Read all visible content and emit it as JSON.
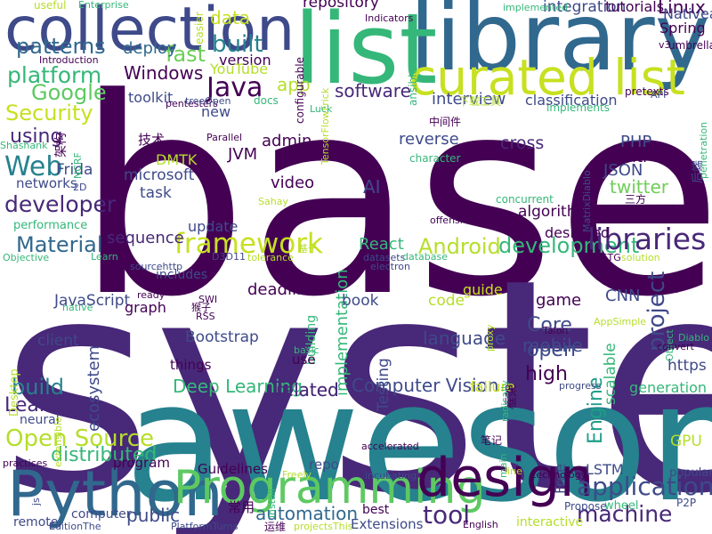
{
  "word_cloud": {
    "words": [
      {
        "text": "based",
        "color": "#440154"
      },
      {
        "text": "system",
        "color": "#482878"
      },
      {
        "text": "awesome",
        "color": "#26828e"
      },
      {
        "text": "library",
        "color": "#31688e"
      },
      {
        "text": "list",
        "color": "#35b779"
      },
      {
        "text": "collection",
        "color": "#3e4a89"
      },
      {
        "text": "curated list",
        "color": "#c7e020"
      },
      {
        "text": "Python",
        "color": "#31688e"
      },
      {
        "text": "Programming",
        "color": "#5ec962"
      },
      {
        "text": "design",
        "color": "#440154"
      },
      {
        "text": "project",
        "color": "#3e4a89"
      },
      {
        "text": "framework",
        "color": "#c7e020"
      },
      {
        "text": "Android",
        "color": "#b5de2b"
      },
      {
        "text": "development",
        "color": "#35b779"
      },
      {
        "text": "libraries",
        "color": "#482878"
      },
      {
        "text": "Open Source",
        "color": "#b5de2b"
      },
      {
        "text": "application",
        "color": "#3e4a89"
      },
      {
        "text": "machine",
        "color": "#482878"
      },
      {
        "text": "tool",
        "color": "#482878"
      },
      {
        "text": "Java",
        "color": "#440154"
      },
      {
        "text": "Web",
        "color": "#26828e"
      },
      {
        "text": "developer",
        "color": "#482878"
      },
      {
        "text": "platform",
        "color": "#35b779"
      },
      {
        "text": "Google",
        "color": "#5ec962"
      },
      {
        "text": "Security",
        "color": "#c7e020"
      },
      {
        "text": "patterns",
        "color": "#31688e"
      },
      {
        "text": "built",
        "color": "#26828e"
      },
      {
        "text": "fast",
        "color": "#6ece58"
      },
      {
        "text": "app",
        "color": "#b5de2b"
      },
      {
        "text": "Material",
        "color": "#31688e"
      },
      {
        "text": "distributed",
        "color": "#35b779"
      },
      {
        "text": "build",
        "color": "#26828e"
      },
      {
        "text": "Learning",
        "color": "#482878"
      },
      {
        "text": "high",
        "color": "#440154"
      },
      {
        "text": "mobile",
        "color": "#3e4a89"
      },
      {
        "text": "Core",
        "color": "#3e4a89"
      },
      {
        "text": "open",
        "color": "#3e4a89"
      },
      {
        "text": "Engine",
        "color": "#1f9e89"
      },
      {
        "text": "using",
        "color": "#482878"
      },
      {
        "text": "software",
        "color": "#482878"
      },
      {
        "text": "Linux",
        "color": "#440154"
      },
      {
        "text": "Spring",
        "color": "#440154"
      },
      {
        "text": "Nativea",
        "color": "#3e4a89"
      },
      {
        "text": "AI",
        "color": "#3e4a89"
      },
      {
        "text": "twitter",
        "color": "#6ece58"
      },
      {
        "text": "Windows",
        "color": "#440154"
      },
      {
        "text": "data",
        "color": "#c7e020"
      },
      {
        "text": "deploy",
        "color": "#31688e"
      },
      {
        "text": "related",
        "color": "#482878"
      },
      {
        "text": "automation",
        "color": "#31688e"
      },
      {
        "text": "public",
        "color": "#3e4a89"
      },
      {
        "text": "language",
        "color": "#3e4a89"
      },
      {
        "text": "Deep Learning",
        "color": "#35b779"
      },
      {
        "text": "Computer Vision",
        "color": "#3e4a89"
      },
      {
        "text": "repository",
        "color": "#440154"
      },
      {
        "text": "integration",
        "color": "#3e4a89"
      },
      {
        "text": "tutorials",
        "color": "#440154"
      },
      {
        "text": "React",
        "color": "#35b779"
      },
      {
        "text": "sequence",
        "color": "#482878"
      },
      {
        "text": "update",
        "color": "#3e4a89"
      },
      {
        "text": "algorithms",
        "color": "#440154"
      },
      {
        "text": "reverse",
        "color": "#3e4a89"
      },
      {
        "text": "cross",
        "color": "#482878"
      },
      {
        "text": "multi",
        "color": "#440154"
      },
      {
        "text": "JSON",
        "color": "#3e4a89"
      },
      {
        "text": "PHP",
        "color": "#3e4a89"
      },
      {
        "text": "interview",
        "color": "#3e4a89"
      },
      {
        "text": "classification",
        "color": "#3e4a89"
      },
      {
        "text": "implementation",
        "color": "#35b779"
      },
      {
        "text": "video",
        "color": "#440154"
      },
      {
        "text": "admin",
        "color": "#440154"
      },
      {
        "text": "JVM",
        "color": "#440154"
      },
      {
        "text": "DMTK",
        "color": "#b5de2b"
      },
      {
        "text": "microsoft",
        "color": "#3e4a89"
      },
      {
        "text": "task",
        "color": "#3e4a89"
      },
      {
        "text": "toolkit",
        "color": "#3e4a89"
      },
      {
        "text": "new",
        "color": "#3e4a89"
      },
      {
        "text": "version",
        "color": "#440154"
      },
      {
        "text": "YouTube",
        "color": "#b5de2b"
      },
      {
        "text": "game",
        "color": "#440154"
      },
      {
        "text": "CNN",
        "color": "#3e4a89"
      },
      {
        "text": "LSTM",
        "color": "#3e4a89"
      },
      {
        "text": "Free",
        "color": "#3e4a89"
      },
      {
        "text": "GPU",
        "color": "#b5de2b"
      },
      {
        "text": "generation",
        "color": "#35b779"
      },
      {
        "text": "https",
        "color": "#3e4a89"
      },
      {
        "text": "scalable",
        "color": "#35b779"
      },
      {
        "text": "guide",
        "color": "#c7e020"
      },
      {
        "text": "code",
        "color": "#b5de2b"
      },
      {
        "text": "book",
        "color": "#3e4a89"
      },
      {
        "text": "deadline",
        "color": "#440154"
      },
      {
        "text": "Testing",
        "color": "#3e4a89"
      },
      {
        "text": "JavaScript",
        "color": "#3e4a89"
      },
      {
        "text": "ecosystem",
        "color": "#3e4a89"
      },
      {
        "text": "client",
        "color": "#3e4a89"
      },
      {
        "text": "neural",
        "color": "#3e4a89"
      },
      {
        "text": "Bootstrap",
        "color": "#3e4a89"
      },
      {
        "text": "things",
        "color": "#440154"
      },
      {
        "text": "graph",
        "color": "#440154"
      },
      {
        "text": "includes",
        "color": "#3e4a89"
      },
      {
        "text": "related",
        "color": "#482878"
      },
      {
        "text": "building",
        "color": "#35b779"
      },
      {
        "text": "use",
        "color": "#440154"
      },
      {
        "text": "failure",
        "color": "#c7e020"
      },
      {
        "text": "designed",
        "color": "#440154"
      },
      {
        "text": "Frida",
        "color": "#3e4a89"
      },
      {
        "text": "networks",
        "color": "#3e4a89"
      },
      {
        "text": "performance",
        "color": "#35b779"
      },
      {
        "text": "program",
        "color": "#440154"
      },
      {
        "text": "Guidelines",
        "color": "#440154"
      },
      {
        "text": "repo",
        "color": "#3e4a89"
      },
      {
        "text": "computer",
        "color": "#3e4a89"
      },
      {
        "text": "remote",
        "color": "#3e4a89"
      },
      {
        "text": "best",
        "color": "#440154"
      },
      {
        "text": "Extensions",
        "color": "#3e4a89"
      },
      {
        "text": "interactive",
        "color": "#b5de2b"
      },
      {
        "text": "popular",
        "color": "#3e4a89"
      },
      {
        "text": "P2P",
        "color": "#3e4a89"
      },
      {
        "text": "wheel",
        "color": "#35b779"
      },
      {
        "text": "Propose",
        "color": "#3e4a89"
      },
      {
        "text": "English",
        "color": "#440154"
      },
      {
        "text": "技术",
        "color": "#440154"
      },
      {
        "text": "架构",
        "color": "#440154"
      },
      {
        "text": "常用",
        "color": "#440154"
      },
      {
        "text": "框架",
        "color": "#440154"
      },
      {
        "text": "笔记",
        "color": "#440154"
      },
      {
        "text": "三方",
        "color": "#440154"
      },
      {
        "text": "后端",
        "color": "#3e4a89"
      },
      {
        "text": "运维",
        "color": "#440154"
      },
      {
        "text": "基于",
        "color": "#b5de2b"
      },
      {
        "text": "中间件",
        "color": "#440154"
      },
      {
        "text": "下载工具",
        "color": "#b5de2b"
      },
      {
        "text": "useful",
        "color": "#b5de2b"
      },
      {
        "text": "Enterprise",
        "color": "#35b779"
      },
      {
        "text": "easier",
        "color": "#b5de2b"
      },
      {
        "text": "Introduction",
        "color": "#440154"
      },
      {
        "text": "pentesters",
        "color": "#440154"
      },
      {
        "text": "configurable",
        "color": "#440154"
      },
      {
        "text": "TensorFlowFrick",
        "color": "#b5de2b"
      },
      {
        "text": "Indicators",
        "color": "#440154"
      },
      {
        "text": "implemented",
        "color": "#35b779"
      },
      {
        "text": "ansible",
        "color": "#35b779"
      },
      {
        "text": "Luck",
        "color": "#35b779"
      },
      {
        "text": "docs",
        "color": "#35b779"
      },
      {
        "text": "treeOpen",
        "color": "#3e4a89"
      },
      {
        "text": "Parallel",
        "color": "#440154"
      },
      {
        "text": "character",
        "color": "#35b779"
      },
      {
        "text": "concurrent",
        "color": "#35b779"
      },
      {
        "text": "offensive",
        "color": "#440154"
      },
      {
        "text": "implements",
        "color": "#35b779"
      },
      {
        "text": "MatrixDiablo",
        "color": "#3e4a89"
      },
      {
        "text": "pretexts",
        "color": "#440154"
      },
      {
        "text": "API",
        "color": "#3e4a89"
      },
      {
        "text": "v3",
        "color": "#440154"
      },
      {
        "text": "umbrella",
        "color": "#440154"
      },
      {
        "text": "penetration",
        "color": "#35b779"
      },
      {
        "text": "Shashank",
        "color": "#35b779"
      },
      {
        "text": "NCRF",
        "color": "#35b779"
      },
      {
        "text": "2D",
        "color": "#3e4a89"
      },
      {
        "text": "Sahay",
        "color": "#b5de2b"
      },
      {
        "text": "Objective",
        "color": "#35b779"
      },
      {
        "text": "Learn",
        "color": "#35b779"
      },
      {
        "text": "sourcehttp",
        "color": "#3e4a89"
      },
      {
        "text": "D3D11",
        "color": "#3e4a89"
      },
      {
        "text": "tolerance",
        "color": "#b5de2b"
      },
      {
        "text": "datasets",
        "color": "#3e4a89"
      },
      {
        "text": "database",
        "color": "#35b779"
      },
      {
        "text": "electron",
        "color": "#3e4a89"
      },
      {
        "text": "MSTG",
        "color": "#440154"
      },
      {
        "text": "solution",
        "color": "#b5de2b"
      },
      {
        "text": "quality",
        "color": "#440154"
      },
      {
        "text": "ready",
        "color": "#440154"
      },
      {
        "text": "SWI",
        "color": "#440154"
      },
      {
        "text": "native",
        "color": "#35b779"
      },
      {
        "text": "RSS",
        "color": "#440154"
      },
      {
        "text": "猴子",
        "color": "#440154"
      },
      {
        "text": "Desktop",
        "color": "#b5de2b"
      },
      {
        "text": "proxy",
        "color": "#b5de2b"
      },
      {
        "text": "basic",
        "color": "#35b779"
      },
      {
        "text": "radically",
        "color": "#35b779"
      },
      {
        "text": "Talon",
        "color": "#440154"
      },
      {
        "text": "AppSimple",
        "color": "#b5de2b"
      },
      {
        "text": "Object",
        "color": "#35b779"
      },
      {
        "text": "Diablo",
        "color": "#35b779"
      },
      {
        "text": "convert",
        "color": "#440154"
      },
      {
        "text": "extensible",
        "color": "#b5de2b"
      },
      {
        "text": "progress",
        "color": "#3e4a89"
      },
      {
        "text": "accelerated",
        "color": "#440154"
      },
      {
        "text": "main",
        "color": "#35b779"
      },
      {
        "text": "practices",
        "color": "#440154"
      },
      {
        "text": "install",
        "color": "#35b779"
      },
      {
        "text": "Freely",
        "color": "#b5de2b"
      },
      {
        "text": "incubating",
        "color": "#3e4a89"
      },
      {
        "text": "line",
        "color": "#b5de2b"
      },
      {
        "text": "technology",
        "color": "#440154"
      },
      {
        "text": "js",
        "color": "#3e4a89"
      },
      {
        "text": "EditionThe",
        "color": "#3e4a89"
      },
      {
        "text": "PlatformTurns",
        "color": "#3e4a89"
      },
      {
        "text": "projectsThis",
        "color": "#b5de2b"
      }
    ]
  }
}
